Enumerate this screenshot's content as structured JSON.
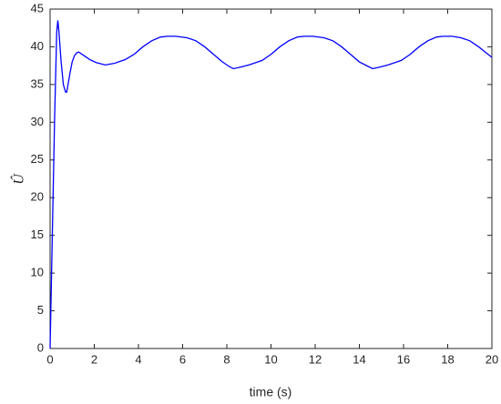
{
  "chart_data": {
    "type": "line",
    "xlabel": "time (s)",
    "ylabel": "Û",
    "xlim": [
      0,
      20
    ],
    "xticks": [
      0,
      2,
      4,
      6,
      8,
      10,
      12,
      14,
      16,
      18,
      20
    ],
    "ylim": [
      0,
      45
    ],
    "yticks": [
      0,
      5,
      10,
      15,
      20,
      25,
      30,
      35,
      40,
      45
    ],
    "series": [
      {
        "color": "#0000ff",
        "x": [
          0,
          0.1,
          0.2,
          0.3,
          0.35,
          0.4,
          0.5,
          0.6,
          0.7,
          0.75,
          0.8,
          0.9,
          1.0,
          1.1,
          1.2,
          1.3,
          1.5,
          1.8,
          2.1,
          2.5,
          2.9,
          3.4,
          3.8,
          4.2,
          4.6,
          5.0,
          5.3,
          5.7,
          6.2,
          6.6,
          7.0,
          7.4,
          7.8,
          8.1,
          8.3,
          8.6,
          9.0,
          9.6,
          10.0,
          10.4,
          10.8,
          11.2,
          11.5,
          11.9,
          12.4,
          12.8,
          13.2,
          13.6,
          14.0,
          14.4,
          14.6,
          14.9,
          15.3,
          15.9,
          16.3,
          16.7,
          17.1,
          17.5,
          17.8,
          18.2,
          18.6,
          19.0,
          19.4,
          19.7,
          20
        ],
        "values": [
          0,
          15,
          30,
          42,
          43.5,
          42,
          38,
          35,
          34,
          34,
          34.8,
          36.5,
          38,
          38.8,
          39.2,
          39.3,
          38.9,
          38.3,
          37.9,
          37.6,
          37.8,
          38.3,
          39.0,
          40.0,
          40.8,
          41.3,
          41.4,
          41.4,
          41.2,
          40.8,
          40.0,
          39.0,
          38.0,
          37.4,
          37.1,
          37.3,
          37.6,
          38.2,
          39.0,
          40.0,
          40.8,
          41.3,
          41.4,
          41.4,
          41.2,
          40.8,
          40.0,
          39.0,
          38.0,
          37.4,
          37.1,
          37.3,
          37.6,
          38.2,
          39.0,
          40.0,
          40.8,
          41.3,
          41.4,
          41.4,
          41.2,
          40.8,
          40.0,
          39.3,
          38.6
        ]
      }
    ]
  }
}
